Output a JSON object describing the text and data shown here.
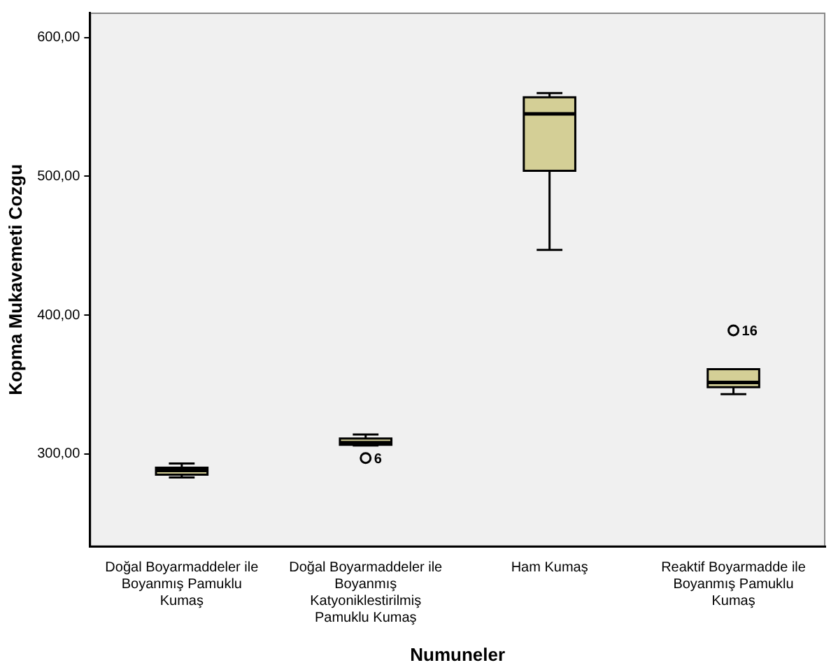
{
  "chart_data": {
    "type": "box",
    "xlabel": "Numuneler",
    "ylabel": "Kopma Mukavemeti Cozgu",
    "categories": [
      "Doğal Boyarmaddeler ile Boyanmış Pamuklu Kumaş",
      "Doğal Boyarmaddeler ile Boyanmış Katyoniklestirilmiş Pamuklu Kumaş",
      "Ham Kumaş",
      "Reaktif Boyarmadde ile Boyanmış Pamuklu Kumaş"
    ],
    "boxes": [
      {
        "low": 283,
        "q1": 285,
        "median": 288,
        "q3": 290,
        "high": 293
      },
      {
        "low": 306,
        "q1": 306.5,
        "median": 308,
        "q3": 311,
        "high": 314,
        "outliers": [
          297
        ]
      },
      {
        "low": 447,
        "q1": 504,
        "median": 545,
        "q3": 557,
        "high": 560
      },
      {
        "low": 343,
        "q1": 348,
        "median": 351.5,
        "q3": 361,
        "high": 361,
        "outliers": [
          389
        ]
      }
    ],
    "color": "#d4cf96",
    "ylim": [
      233,
      618
    ],
    "yticks": [
      {
        "value": 300,
        "label": "300,00"
      },
      {
        "value": 400,
        "label": "400,00"
      },
      {
        "value": 500,
        "label": "500,00"
      },
      {
        "value": 600,
        "label": "600,00"
      }
    ],
    "grid": false,
    "legend": false,
    "annotations": [
      "6",
      "16"
    ]
  }
}
